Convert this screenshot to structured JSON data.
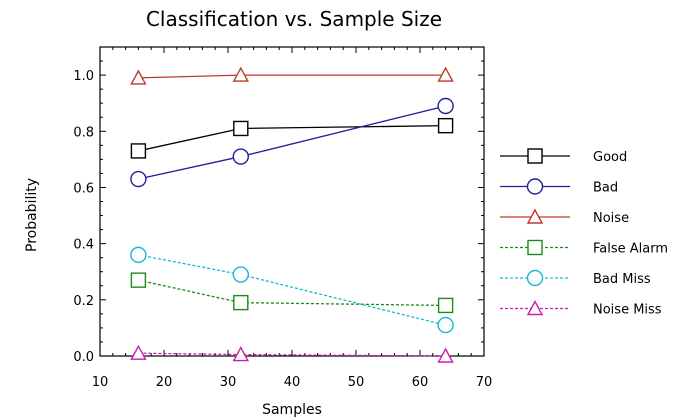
{
  "chart_data": {
    "type": "line",
    "title": "Classification vs. Sample Size",
    "xlabel": "Samples",
    "ylabel": "Probability",
    "xlim": [
      10,
      70
    ],
    "ylim": [
      0,
      1.1
    ],
    "xticks": [
      10,
      20,
      30,
      40,
      50,
      60,
      70
    ],
    "yticks": [
      0.0,
      0.2,
      0.4,
      0.6,
      0.8,
      1.0
    ],
    "xtick_labels": [
      "10",
      "20",
      "30",
      "40",
      "50",
      "60",
      "70"
    ],
    "ytick_labels": [
      "0.0",
      "0.2",
      "0.4",
      "0.6",
      "0.8",
      "1.0"
    ],
    "legend_position": "right",
    "x": [
      16,
      32,
      64
    ],
    "series": [
      {
        "name": "Good",
        "values": [
          0.73,
          0.81,
          0.82
        ],
        "color": "#000000",
        "marker": "square",
        "dash": "solid"
      },
      {
        "name": "Bad",
        "values": [
          0.63,
          0.71,
          0.89
        ],
        "color": "#1f1f9a",
        "marker": "circle",
        "dash": "solid"
      },
      {
        "name": "Noise",
        "values": [
          0.99,
          1.0,
          1.0
        ],
        "color": "#c0392b",
        "marker": "triangle",
        "dash": "solid"
      },
      {
        "name": "False Alarm",
        "values": [
          0.27,
          0.19,
          0.18
        ],
        "color": "#1e8a1e",
        "marker": "square",
        "dash": "dashed"
      },
      {
        "name": "Bad Miss",
        "values": [
          0.36,
          0.29,
          0.11
        ],
        "color": "#17b7d6",
        "marker": "circle",
        "dash": "dashed"
      },
      {
        "name": "Noise Miss",
        "values": [
          0.01,
          0.005,
          0.0
        ],
        "color": "#c71fb0",
        "marker": "triangle",
        "dash": "dashed"
      }
    ]
  }
}
